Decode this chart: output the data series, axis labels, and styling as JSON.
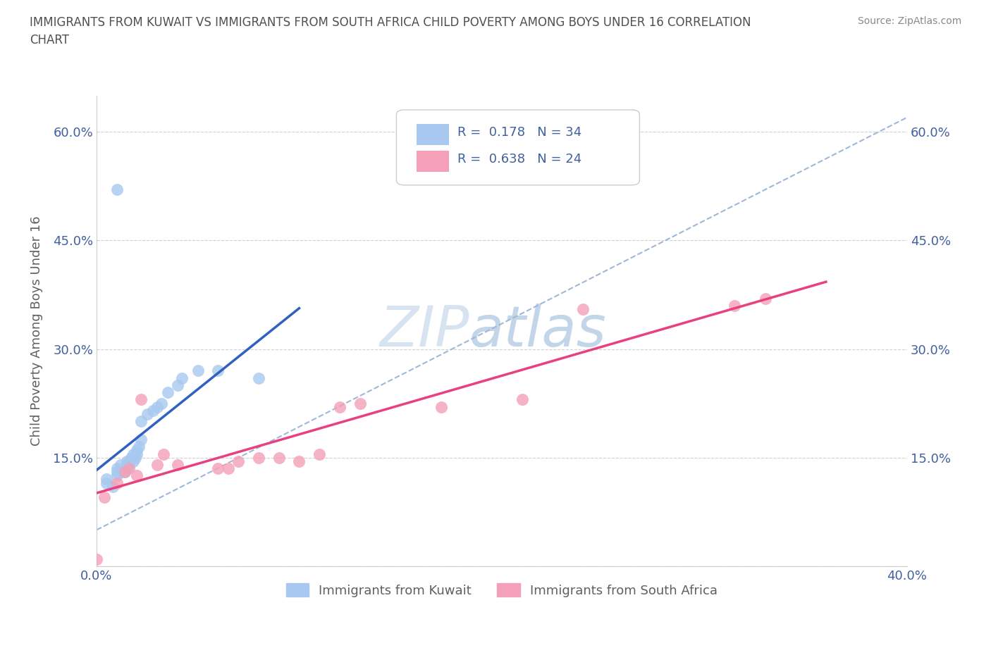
{
  "title": "IMMIGRANTS FROM KUWAIT VS IMMIGRANTS FROM SOUTH AFRICA CHILD POVERTY AMONG BOYS UNDER 16 CORRELATION\nCHART",
  "source": "Source: ZipAtlas.com",
  "ylabel": "Child Poverty Among Boys Under 16",
  "xlim": [
    0.0,
    0.4
  ],
  "ylim": [
    0.0,
    0.65
  ],
  "kuwait_R": 0.178,
  "kuwait_N": 34,
  "sa_R": 0.638,
  "sa_N": 24,
  "kuwait_color": "#a8c8f0",
  "kuwait_line_color": "#3060c0",
  "sa_color": "#f4a0b8",
  "sa_line_color": "#e84080",
  "dash_color": "#a0b8d8",
  "grid_color": "#d0d0d0",
  "background_color": "#ffffff",
  "kuwait_scatter_x": [
    0.005,
    0.005,
    0.008,
    0.01,
    0.01,
    0.01,
    0.012,
    0.012,
    0.014,
    0.015,
    0.015,
    0.015,
    0.016,
    0.016,
    0.017,
    0.018,
    0.018,
    0.019,
    0.02,
    0.02,
    0.021,
    0.022,
    0.022,
    0.025,
    0.028,
    0.03,
    0.032,
    0.035,
    0.04,
    0.042,
    0.05,
    0.06,
    0.08,
    0.01
  ],
  "kuwait_scatter_y": [
    0.115,
    0.12,
    0.11,
    0.125,
    0.13,
    0.135,
    0.13,
    0.14,
    0.13,
    0.135,
    0.14,
    0.145,
    0.14,
    0.145,
    0.15,
    0.145,
    0.155,
    0.15,
    0.155,
    0.16,
    0.165,
    0.175,
    0.2,
    0.21,
    0.215,
    0.22,
    0.225,
    0.24,
    0.25,
    0.26,
    0.27,
    0.27,
    0.26,
    0.52
  ],
  "sa_scatter_x": [
    0.0,
    0.004,
    0.01,
    0.014,
    0.016,
    0.02,
    0.022,
    0.03,
    0.033,
    0.04,
    0.06,
    0.065,
    0.07,
    0.08,
    0.09,
    0.1,
    0.11,
    0.12,
    0.13,
    0.17,
    0.21,
    0.24,
    0.315,
    0.33
  ],
  "sa_scatter_y": [
    0.01,
    0.095,
    0.115,
    0.13,
    0.135,
    0.125,
    0.23,
    0.14,
    0.155,
    0.14,
    0.135,
    0.135,
    0.145,
    0.15,
    0.15,
    0.145,
    0.155,
    0.22,
    0.225,
    0.22,
    0.23,
    0.355,
    0.36,
    0.37
  ],
  "legend_kuwait_label": "Immigrants from Kuwait",
  "legend_sa_label": "Immigrants from South Africa",
  "title_color": "#505050",
  "axis_label_color": "#606060",
  "tick_color": "#4060a0",
  "legend_text_color": "#4060a0",
  "watermark_color": "#c8ddf0"
}
